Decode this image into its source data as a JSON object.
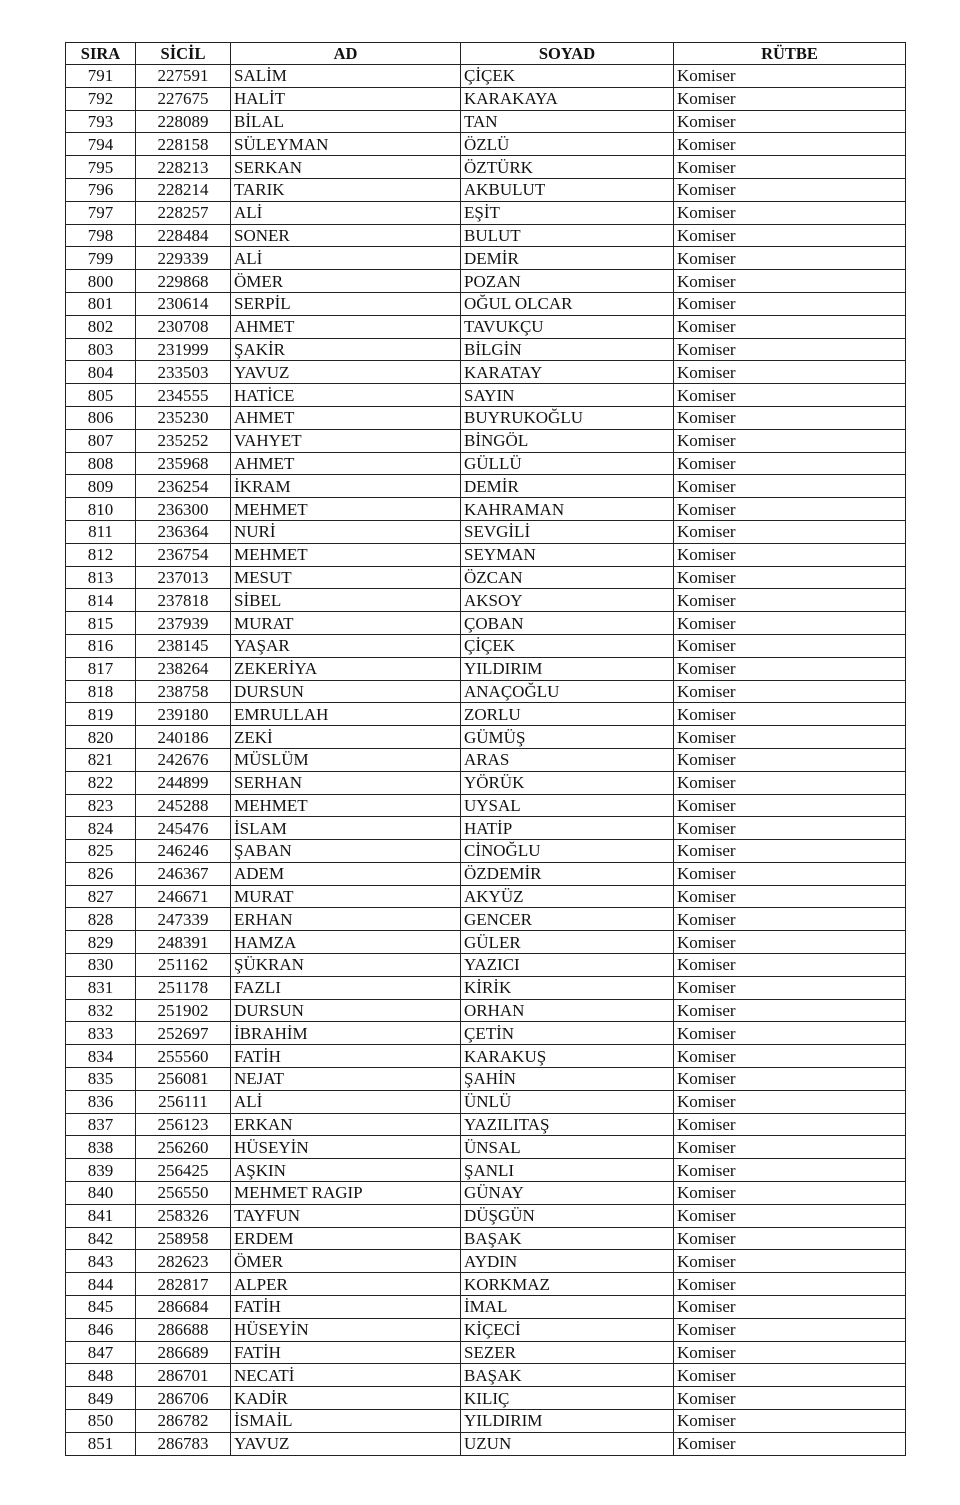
{
  "headers": [
    "SIRA",
    "SİCİL",
    "AD",
    "SOYAD",
    "RÜTBE"
  ],
  "rows": [
    [
      "791",
      "227591",
      "SALİM",
      "ÇİÇEK",
      "Komiser"
    ],
    [
      "792",
      "227675",
      "HALİT",
      "KARAKAYA",
      "Komiser"
    ],
    [
      "793",
      "228089",
      "BİLAL",
      "TAN",
      "Komiser"
    ],
    [
      "794",
      "228158",
      "SÜLEYMAN",
      "ÖZLÜ",
      "Komiser"
    ],
    [
      "795",
      "228213",
      "SERKAN",
      "ÖZTÜRK",
      "Komiser"
    ],
    [
      "796",
      "228214",
      "TARIK",
      "AKBULUT",
      "Komiser"
    ],
    [
      "797",
      "228257",
      "ALİ",
      "EŞİT",
      "Komiser"
    ],
    [
      "798",
      "228484",
      "SONER",
      "BULUT",
      "Komiser"
    ],
    [
      "799",
      "229339",
      "ALİ",
      "DEMİR",
      "Komiser"
    ],
    [
      "800",
      "229868",
      "ÖMER",
      "POZAN",
      "Komiser"
    ],
    [
      "801",
      "230614",
      "SERPİL",
      "OĞUL OLCAR",
      "Komiser"
    ],
    [
      "802",
      "230708",
      "AHMET",
      "TAVUKÇU",
      "Komiser"
    ],
    [
      "803",
      "231999",
      "ŞAKİR",
      "BİLGİN",
      "Komiser"
    ],
    [
      "804",
      "233503",
      "YAVUZ",
      "KARATAY",
      "Komiser"
    ],
    [
      "805",
      "234555",
      "HATİCE",
      "SAYIN",
      "Komiser"
    ],
    [
      "806",
      "235230",
      "AHMET",
      "BUYRUKOĞLU",
      "Komiser"
    ],
    [
      "807",
      "235252",
      "VAHYET",
      "BİNGÖL",
      "Komiser"
    ],
    [
      "808",
      "235968",
      "AHMET",
      "GÜLLÜ",
      "Komiser"
    ],
    [
      "809",
      "236254",
      "İKRAM",
      "DEMİR",
      "Komiser"
    ],
    [
      "810",
      "236300",
      "MEHMET",
      "KAHRAMAN",
      "Komiser"
    ],
    [
      "811",
      "236364",
      "NURİ",
      "SEVGİLİ",
      "Komiser"
    ],
    [
      "812",
      "236754",
      "MEHMET",
      "SEYMAN",
      "Komiser"
    ],
    [
      "813",
      "237013",
      "MESUT",
      "ÖZCAN",
      "Komiser"
    ],
    [
      "814",
      "237818",
      "SİBEL",
      "AKSOY",
      "Komiser"
    ],
    [
      "815",
      "237939",
      "MURAT",
      "ÇOBAN",
      "Komiser"
    ],
    [
      "816",
      "238145",
      "YAŞAR",
      "ÇİÇEK",
      "Komiser"
    ],
    [
      "817",
      "238264",
      "ZEKERİYA",
      "YILDIRIM",
      "Komiser"
    ],
    [
      "818",
      "238758",
      "DURSUN",
      "ANAÇOĞLU",
      "Komiser"
    ],
    [
      "819",
      "239180",
      "EMRULLAH",
      "ZORLU",
      "Komiser"
    ],
    [
      "820",
      "240186",
      "ZEKİ",
      "GÜMÜŞ",
      "Komiser"
    ],
    [
      "821",
      "242676",
      "MÜSLÜM",
      "ARAS",
      "Komiser"
    ],
    [
      "822",
      "244899",
      "SERHAN",
      "YÖRÜK",
      "Komiser"
    ],
    [
      "823",
      "245288",
      "MEHMET",
      "UYSAL",
      "Komiser"
    ],
    [
      "824",
      "245476",
      "İSLAM",
      "HATİP",
      "Komiser"
    ],
    [
      "825",
      "246246",
      "ŞABAN",
      "CİNOĞLU",
      "Komiser"
    ],
    [
      "826",
      "246367",
      "ADEM",
      "ÖZDEMİR",
      "Komiser"
    ],
    [
      "827",
      "246671",
      "MURAT",
      "AKYÜZ",
      "Komiser"
    ],
    [
      "828",
      "247339",
      "ERHAN",
      "GENCER",
      "Komiser"
    ],
    [
      "829",
      "248391",
      "HAMZA",
      "GÜLER",
      "Komiser"
    ],
    [
      "830",
      "251162",
      "ŞÜKRAN",
      "YAZICI",
      "Komiser"
    ],
    [
      "831",
      "251178",
      "FAZLI",
      "KİRİK",
      "Komiser"
    ],
    [
      "832",
      "251902",
      "DURSUN",
      "ORHAN",
      "Komiser"
    ],
    [
      "833",
      "252697",
      "İBRAHİM",
      "ÇETİN",
      "Komiser"
    ],
    [
      "834",
      "255560",
      "FATİH",
      "KARAKUŞ",
      "Komiser"
    ],
    [
      "835",
      "256081",
      "NEJAT",
      "ŞAHİN",
      "Komiser"
    ],
    [
      "836",
      "256111",
      "ALİ",
      "ÜNLÜ",
      "Komiser"
    ],
    [
      "837",
      "256123",
      "ERKAN",
      "YAZILITAŞ",
      "Komiser"
    ],
    [
      "838",
      "256260",
      "HÜSEYİN",
      "ÜNSAL",
      "Komiser"
    ],
    [
      "839",
      "256425",
      "AŞKIN",
      "ŞANLI",
      "Komiser"
    ],
    [
      "840",
      "256550",
      "MEHMET RAGIP",
      "GÜNAY",
      "Komiser"
    ],
    [
      "841",
      "258326",
      "TAYFUN",
      "DÜŞGÜN",
      "Komiser"
    ],
    [
      "842",
      "258958",
      "ERDEM",
      "BAŞAK",
      "Komiser"
    ],
    [
      "843",
      "282623",
      "ÖMER",
      "AYDIN",
      "Komiser"
    ],
    [
      "844",
      "282817",
      "ALPER",
      "KORKMAZ",
      "Komiser"
    ],
    [
      "845",
      "286684",
      "FATİH",
      "İMAL",
      "Komiser"
    ],
    [
      "846",
      "286688",
      "HÜSEYİN",
      "KİÇECİ",
      "Komiser"
    ],
    [
      "847",
      "286689",
      "FATİH",
      "SEZER",
      "Komiser"
    ],
    [
      "848",
      "286701",
      "NECATİ",
      "BAŞAK",
      "Komiser"
    ],
    [
      "849",
      "286706",
      "KADİR",
      "KILIÇ",
      "Komiser"
    ],
    [
      "850",
      "286782",
      "İSMAİL",
      "YILDIRIM",
      "Komiser"
    ],
    [
      "851",
      "286783",
      "YAVUZ",
      "UZUN",
      "Komiser"
    ]
  ]
}
